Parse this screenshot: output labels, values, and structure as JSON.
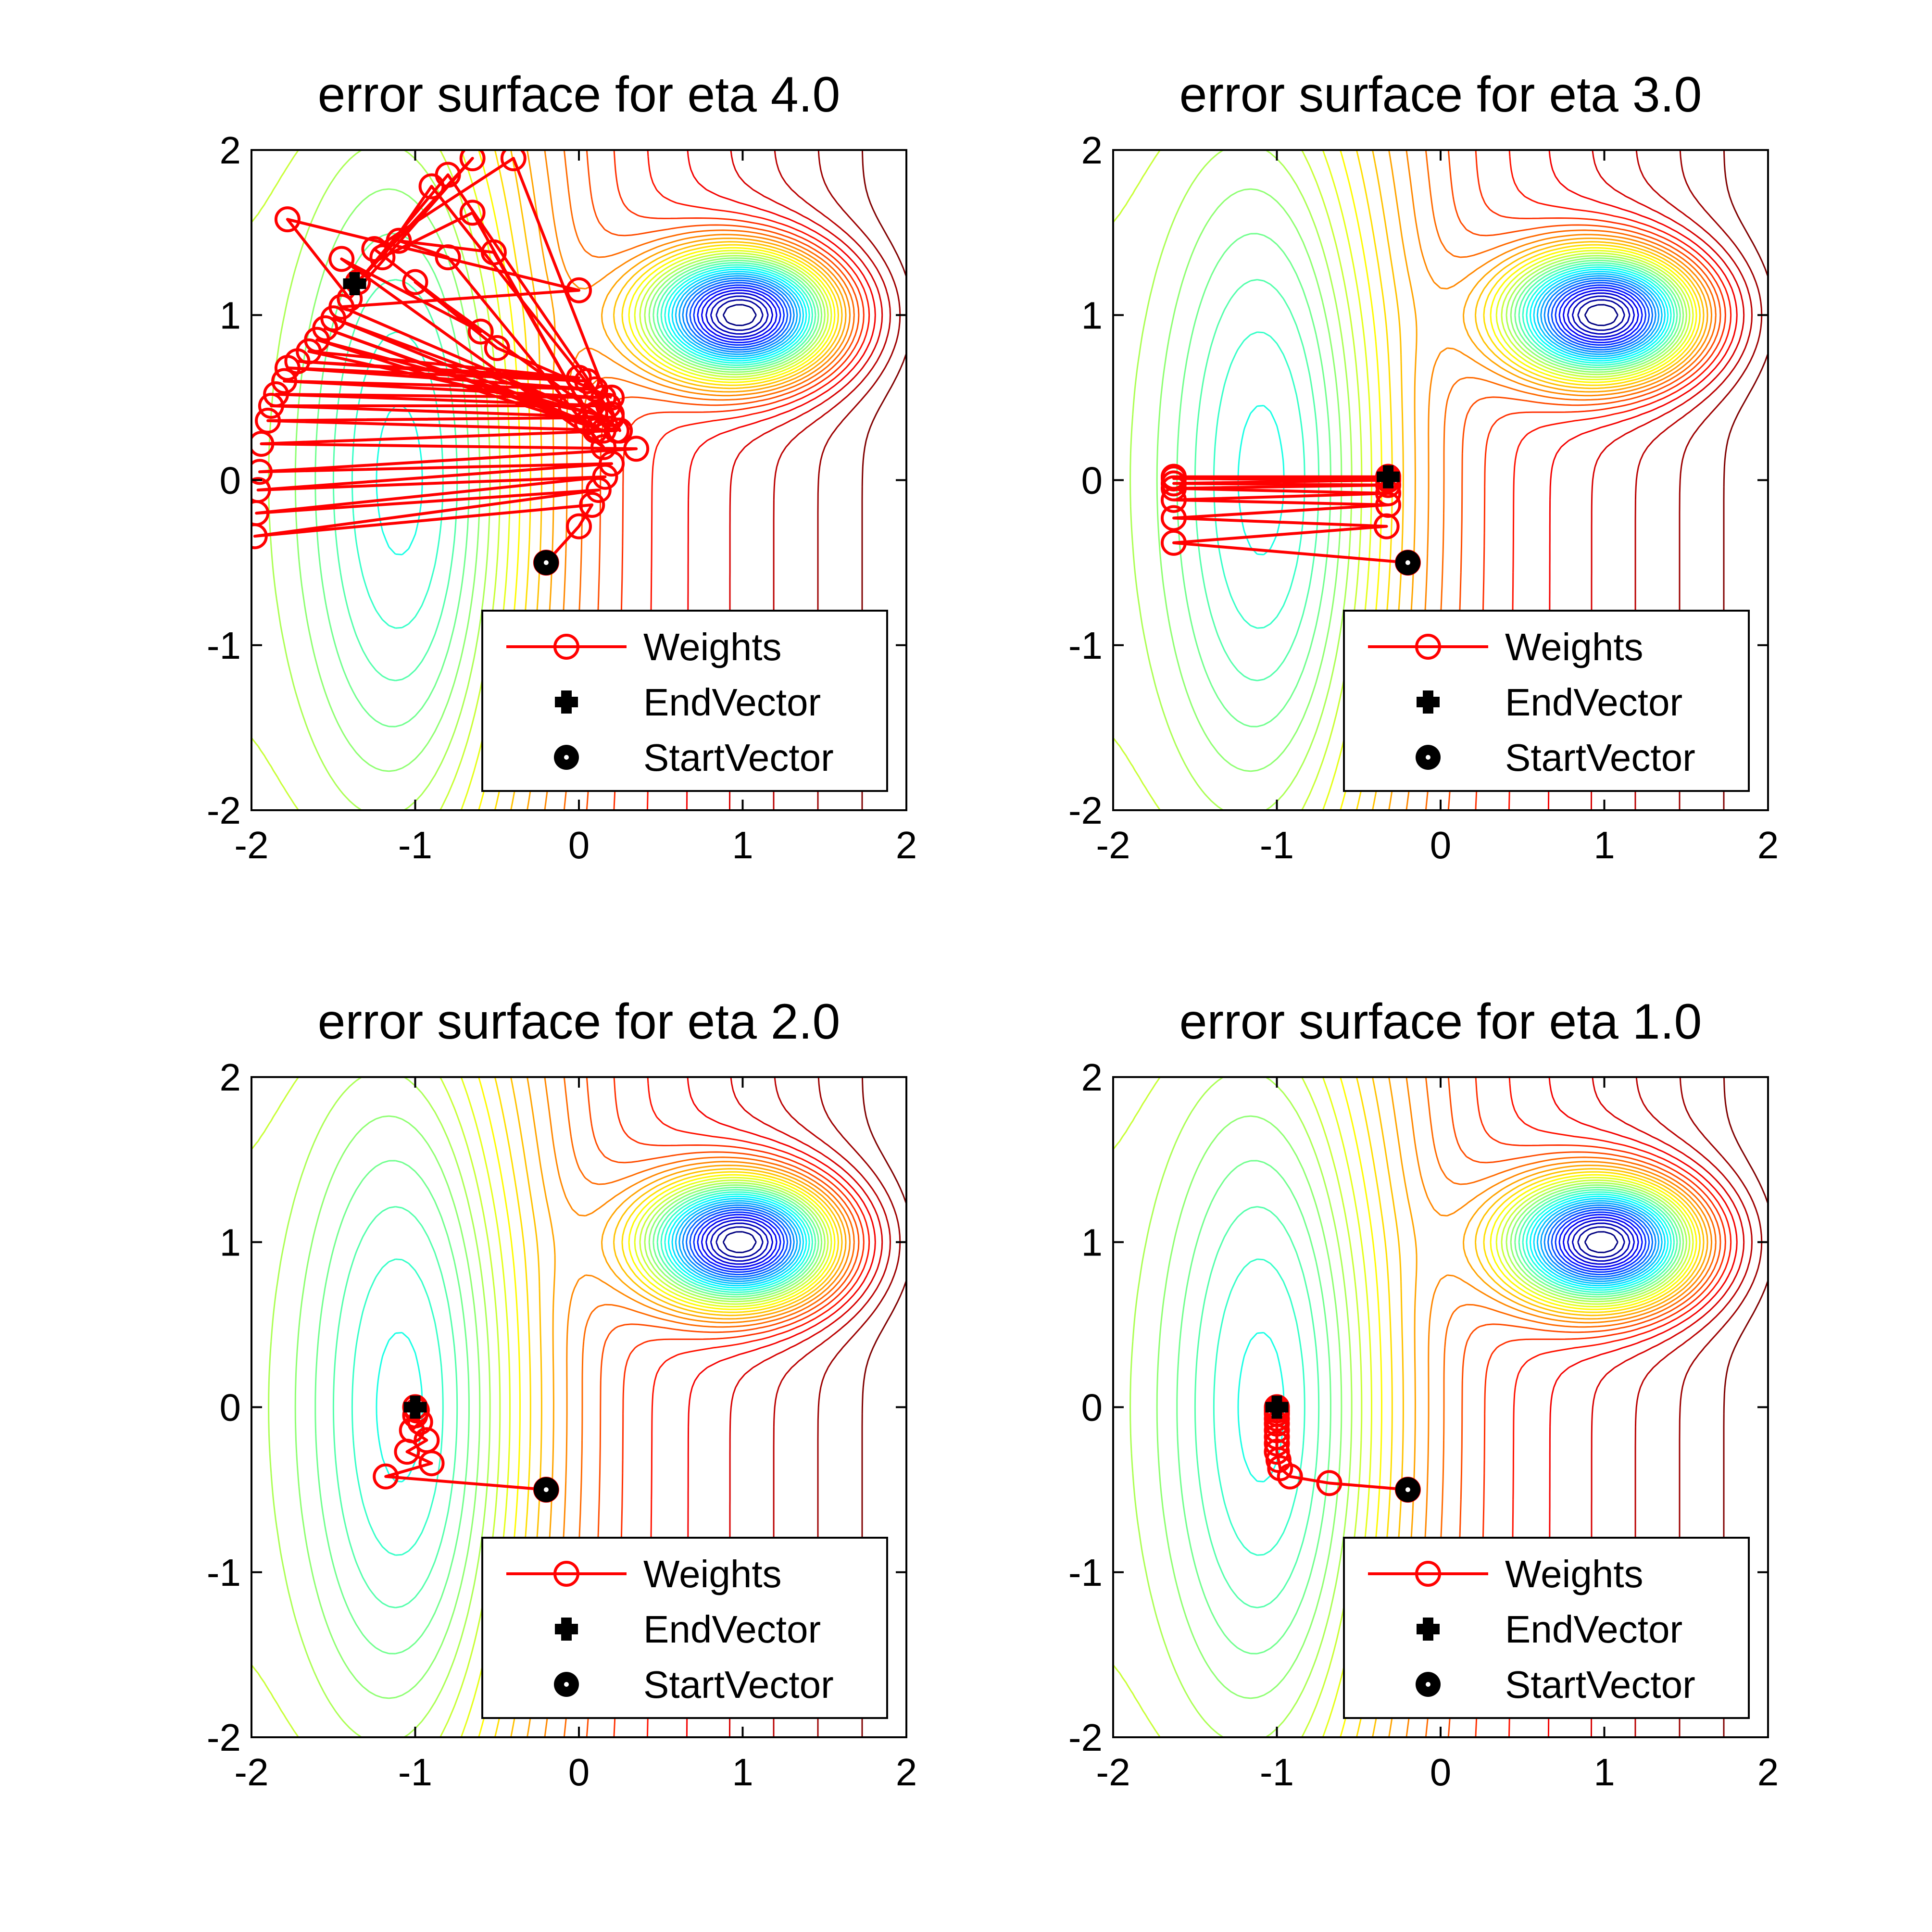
{
  "figure": {
    "background": "#ffffff"
  },
  "chart_data": [
    {
      "type": "contour",
      "title": "error surface for eta 4.0",
      "xlim": [
        -2,
        2
      ],
      "ylim": [
        -2,
        2
      ],
      "xticks": [
        "-2",
        "-1",
        "0",
        "1",
        "2"
      ],
      "yticks": [
        "2",
        "1",
        "0",
        "-1",
        "-2"
      ],
      "surface": {
        "global_min": [
          1,
          1
        ],
        "local_min": [
          -1,
          0
        ],
        "colormap": "jet"
      },
      "legend": {
        "position": "bottom-right",
        "entries": [
          "Weights",
          "EndVector",
          "StartVector"
        ]
      },
      "series": [
        {
          "name": "Weights",
          "color": "#ff0000",
          "marker": "open-circle",
          "points": [
            [
              -0.2,
              -0.5
            ],
            [
              0.0,
              -0.28
            ],
            [
              0.08,
              -0.15
            ],
            [
              -1.98,
              -0.34
            ],
            [
              0.12,
              -0.06
            ],
            [
              -1.97,
              -0.2
            ],
            [
              0.16,
              0.02
            ],
            [
              -1.96,
              -0.06
            ],
            [
              0.2,
              0.1
            ],
            [
              -1.95,
              0.05
            ],
            [
              0.35,
              0.19
            ],
            [
              -1.94,
              0.22
            ],
            [
              0.23,
              0.3
            ],
            [
              -1.9,
              0.36
            ],
            [
              0.2,
              0.38
            ],
            [
              -1.88,
              0.45
            ],
            [
              0.18,
              0.45
            ],
            [
              -1.85,
              0.52
            ],
            [
              0.15,
              0.5
            ],
            [
              -1.8,
              0.6
            ],
            [
              0.1,
              0.55
            ],
            [
              -1.78,
              0.68
            ],
            [
              0.05,
              0.6
            ],
            [
              -1.72,
              0.72
            ],
            [
              0.0,
              0.62
            ],
            [
              -1.65,
              0.78
            ],
            [
              0.1,
              0.4
            ],
            [
              -1.6,
              0.85
            ],
            [
              0.15,
              0.3
            ],
            [
              -1.55,
              0.92
            ],
            [
              0.05,
              0.35
            ],
            [
              -1.5,
              0.98
            ],
            [
              -0.05,
              0.45
            ],
            [
              -1.45,
              1.05
            ],
            [
              0.0,
              1.15
            ],
            [
              -1.78,
              1.58
            ],
            [
              -1.4,
              1.1
            ],
            [
              -0.65,
              1.95
            ],
            [
              -1.35,
              1.2
            ],
            [
              -0.8,
              1.85
            ],
            [
              0.2,
              0.4
            ],
            [
              -0.9,
              1.78
            ],
            [
              -1.2,
              1.35
            ],
            [
              -0.65,
              1.62
            ],
            [
              0.1,
              0.3
            ],
            [
              -0.52,
              1.38
            ],
            [
              -1.1,
              1.45
            ],
            [
              -0.8,
              1.35
            ],
            [
              0.15,
              0.2
            ],
            [
              -1.45,
              1.34
            ],
            [
              -0.6,
              0.9
            ],
            [
              -1.25,
              1.4
            ],
            [
              -0.4,
              1.95
            ],
            [
              0.25,
              0.3
            ],
            [
              -1.0,
              1.2
            ],
            [
              -0.5,
              0.8
            ],
            [
              0.2,
              0.5
            ]
          ]
        },
        {
          "name": "EndVector",
          "color": "#000000",
          "marker": "plus",
          "points": [
            [
              -1.37,
              1.19
            ]
          ]
        },
        {
          "name": "StartVector",
          "color": "#000000",
          "marker": "dot",
          "points": [
            [
              -0.2,
              -0.5
            ]
          ]
        }
      ]
    },
    {
      "type": "contour",
      "title": "error surface for eta 3.0",
      "xlim": [
        -2,
        2
      ],
      "ylim": [
        -2,
        2
      ],
      "xticks": [
        "-2",
        "-1",
        "0",
        "1",
        "2"
      ],
      "yticks": [
        "2",
        "1",
        "0",
        "-1",
        "-2"
      ],
      "surface": {
        "global_min": [
          1,
          1
        ],
        "local_min": [
          -1,
          0
        ],
        "colormap": "jet"
      },
      "legend": {
        "position": "bottom-right",
        "entries": [
          "Weights",
          "EndVector",
          "StartVector"
        ]
      },
      "series": [
        {
          "name": "Weights",
          "color": "#ff0000",
          "marker": "open-circle",
          "points": [
            [
              -0.2,
              -0.5
            ],
            [
              -1.63,
              -0.38
            ],
            [
              -0.33,
              -0.28
            ],
            [
              -1.63,
              -0.23
            ],
            [
              -0.32,
              -0.15
            ],
            [
              -1.63,
              -0.12
            ],
            [
              -0.32,
              -0.08
            ],
            [
              -1.63,
              -0.05
            ],
            [
              -0.32,
              -0.03
            ],
            [
              -1.63,
              -0.02
            ],
            [
              -0.32,
              0.0
            ],
            [
              -1.63,
              0.01
            ],
            [
              -0.32,
              0.01
            ],
            [
              -1.63,
              0.02
            ],
            [
              -0.32,
              0.02
            ],
            [
              -1.63,
              0.02
            ],
            [
              -0.32,
              0.02
            ]
          ]
        },
        {
          "name": "EndVector",
          "color": "#000000",
          "marker": "plus",
          "points": [
            [
              -0.32,
              0.02
            ]
          ]
        },
        {
          "name": "StartVector",
          "color": "#000000",
          "marker": "dot",
          "points": [
            [
              -0.2,
              -0.5
            ]
          ]
        }
      ]
    },
    {
      "type": "contour",
      "title": "error surface for eta 2.0",
      "xlim": [
        -2,
        2
      ],
      "ylim": [
        -2,
        2
      ],
      "xticks": [
        "-2",
        "-1",
        "0",
        "1",
        "2"
      ],
      "yticks": [
        "2",
        "1",
        "0",
        "-1",
        "-2"
      ],
      "surface": {
        "global_min": [
          1,
          1
        ],
        "local_min": [
          -1,
          0
        ],
        "colormap": "jet"
      },
      "legend": {
        "position": "bottom-right",
        "entries": [
          "Weights",
          "EndVector",
          "StartVector"
        ]
      },
      "series": [
        {
          "name": "Weights",
          "color": "#ff0000",
          "marker": "open-circle",
          "points": [
            [
              -0.2,
              -0.5
            ],
            [
              -1.18,
              -0.42
            ],
            [
              -0.9,
              -0.34
            ],
            [
              -1.05,
              -0.27
            ],
            [
              -0.93,
              -0.2
            ],
            [
              -1.02,
              -0.14
            ],
            [
              -0.97,
              -0.09
            ],
            [
              -1.0,
              -0.05
            ],
            [
              -0.99,
              -0.02
            ],
            [
              -1.0,
              0.0
            ]
          ]
        },
        {
          "name": "EndVector",
          "color": "#000000",
          "marker": "plus",
          "points": [
            [
              -1.0,
              0.0
            ]
          ]
        },
        {
          "name": "StartVector",
          "color": "#000000",
          "marker": "dot",
          "points": [
            [
              -0.2,
              -0.5
            ]
          ]
        }
      ]
    },
    {
      "type": "contour",
      "title": "error surface for eta 1.0",
      "xlim": [
        -2,
        2
      ],
      "ylim": [
        -2,
        2
      ],
      "xticks": [
        "-2",
        "-1",
        "0",
        "1",
        "2"
      ],
      "yticks": [
        "2",
        "1",
        "0",
        "-1",
        "-2"
      ],
      "surface": {
        "global_min": [
          1,
          1
        ],
        "local_min": [
          -1,
          0
        ],
        "colormap": "jet"
      },
      "legend": {
        "position": "bottom-right",
        "entries": [
          "Weights",
          "EndVector",
          "StartVector"
        ]
      },
      "series": [
        {
          "name": "Weights",
          "color": "#ff0000",
          "marker": "open-circle",
          "points": [
            [
              -0.2,
              -0.5
            ],
            [
              -0.68,
              -0.46
            ],
            [
              -0.92,
              -0.42
            ],
            [
              -0.98,
              -0.37
            ],
            [
              -0.99,
              -0.32
            ],
            [
              -1.0,
              -0.27
            ],
            [
              -1.0,
              -0.22
            ],
            [
              -1.0,
              -0.18
            ],
            [
              -1.0,
              -0.14
            ],
            [
              -1.0,
              -0.1
            ],
            [
              -1.0,
              -0.07
            ],
            [
              -1.0,
              -0.04
            ],
            [
              -1.0,
              -0.02
            ],
            [
              -1.0,
              0.0
            ]
          ]
        },
        {
          "name": "EndVector",
          "color": "#000000",
          "marker": "plus",
          "points": [
            [
              -1.0,
              0.0
            ]
          ]
        },
        {
          "name": "StartVector",
          "color": "#000000",
          "marker": "dot",
          "points": [
            [
              -0.2,
              -0.5
            ]
          ]
        }
      ]
    }
  ]
}
